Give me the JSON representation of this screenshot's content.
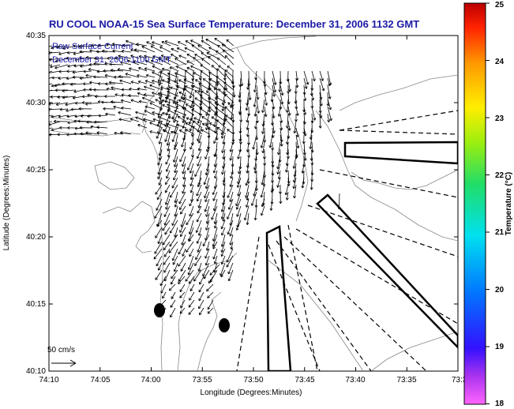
{
  "title": "RU COOL  NOAA-15  Sea Surface Temperature:  December 31, 2006 1132 GMT",
  "overlay": {
    "line1": "Raw Surface Current",
    "line2": "December 31, 2006 1100 GMT"
  },
  "x_axis": {
    "label": "Longitude (Degrees:Minutes)",
    "ticks": [
      "74:10",
      "74:05",
      "74:00",
      "73:55",
      "73:50",
      "73:45",
      "73:40",
      "73:35",
      "73:3"
    ]
  },
  "y_axis": {
    "label": "Latitude (Degrees:Minutes)",
    "ticks": [
      "40:35",
      "40:30",
      "40:25",
      "40:20",
      "40:15",
      "40:10"
    ]
  },
  "colorbar": {
    "label": "Temperature (°C)",
    "ticks": [
      "25",
      "24",
      "23",
      "22",
      "21",
      "20",
      "19",
      "18"
    ],
    "range": [
      18,
      25
    ]
  },
  "scale_vector": {
    "label": "50 cm/s"
  },
  "colors": {
    "title": "#1a1aa6",
    "land_outline": "#888888",
    "vectors": "#000000"
  }
}
